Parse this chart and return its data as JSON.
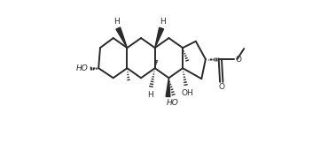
{
  "bg_color": "#ffffff",
  "line_color": "#2a2a2a",
  "figsize": [
    3.79,
    1.71
  ],
  "dpi": 100,
  "lw": 1.4,
  "xlim": [
    -0.02,
    1.0
  ],
  "ylim": [
    0.05,
    0.97
  ]
}
